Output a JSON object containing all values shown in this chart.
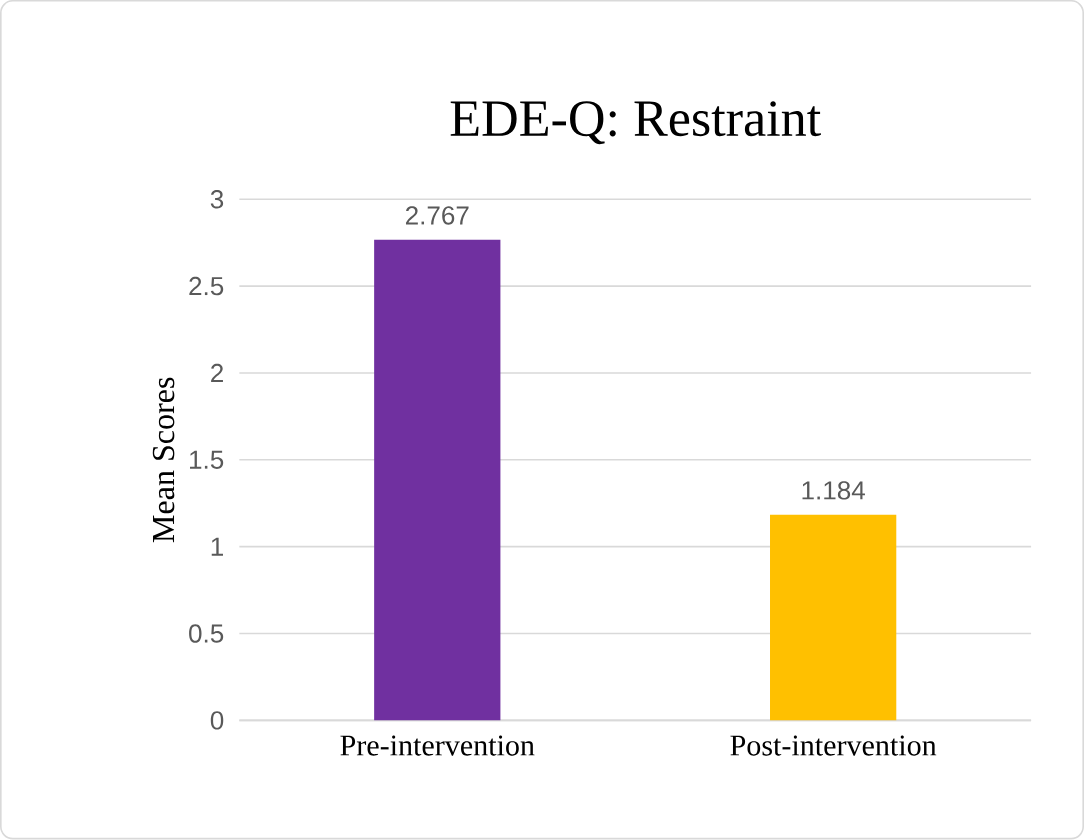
{
  "chart_data": {
    "type": "bar",
    "title": "EDE-Q: Restraint",
    "ylabel": "Mean Scores",
    "categories": [
      "Pre-intervention",
      "Post-intervention"
    ],
    "values": [
      2.767,
      1.184
    ],
    "value_labels": [
      "2.767",
      "1.184"
    ],
    "colors": [
      "#7030a0",
      "#ffc000"
    ],
    "ylim": [
      0,
      3
    ],
    "yticks": [
      0,
      0.5,
      1,
      1.5,
      2,
      2.5,
      3
    ],
    "grid": "y"
  }
}
